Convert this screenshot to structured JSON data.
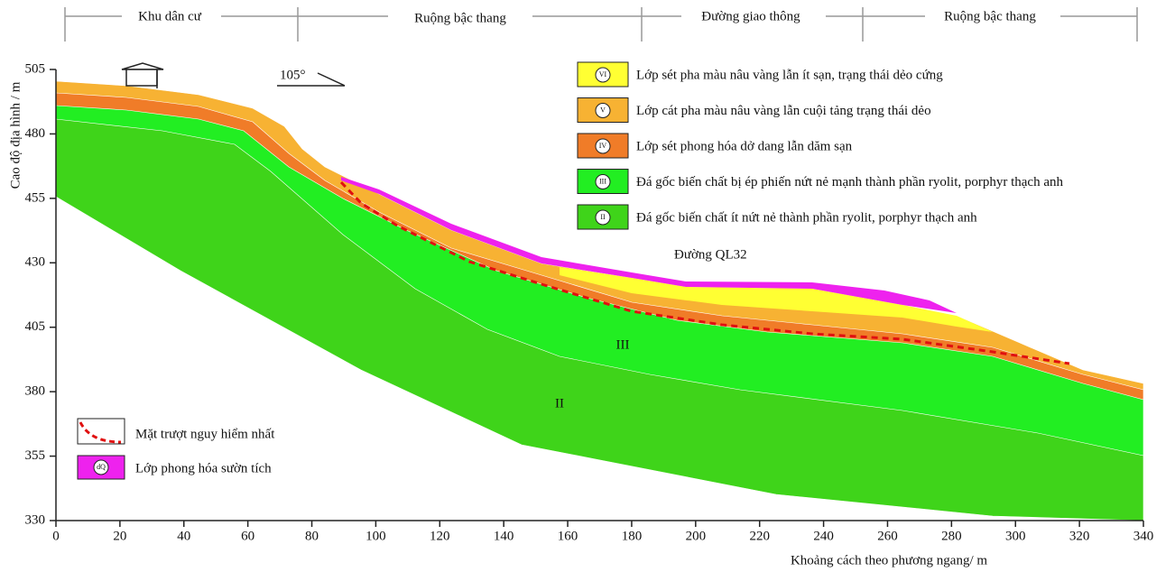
{
  "header": {
    "zones": [
      "Khu dân cư",
      "Ruộng bậc thang",
      "Đường giao thông",
      "Ruộng bậc thang"
    ]
  },
  "axes": {
    "x_label": "Khoảng cách theo phương ngang/ m",
    "y_label": "Cao độ địa hình / m",
    "xlim": [
      0,
      340
    ],
    "ylim": [
      330,
      505
    ],
    "xticks": [
      0,
      20,
      40,
      60,
      80,
      100,
      120,
      140,
      160,
      180,
      200,
      220,
      240,
      260,
      280,
      300,
      320,
      340
    ],
    "yticks": [
      330,
      355,
      380,
      405,
      430,
      455,
      480,
      505
    ]
  },
  "annotations": {
    "angle": "105°",
    "road": "Đường QL32",
    "layer_iii": "III",
    "layer_ii": "II"
  },
  "legend": [
    {
      "symbol": "VI",
      "label": "Lớp sét pha màu nâu vàng lẫn ít sạn, trạng thái dẻo cứng"
    },
    {
      "symbol": "V",
      "label": "Lớp cát pha màu nâu vàng lẫn cuội tảng trạng thái dẻo"
    },
    {
      "symbol": "IV",
      "label": "Lớp sét phong hóa dở dang lẫn dăm sạn"
    },
    {
      "symbol": "III",
      "label": "Đá gốc biến chất bị ép phiến nứt nẻ mạnh thành phần ryolit, porphyr thạch anh"
    },
    {
      "symbol": "II",
      "label": "Đá gốc biến chất ít nứt nẻ thành phần ryolit, porphyr thạch anh"
    }
  ],
  "legend2": [
    {
      "label": "Mặt trượt nguy hiểm nhất"
    },
    {
      "symbol": "dQ",
      "label": "Lớp phong hóa sườn tích"
    }
  ]
}
